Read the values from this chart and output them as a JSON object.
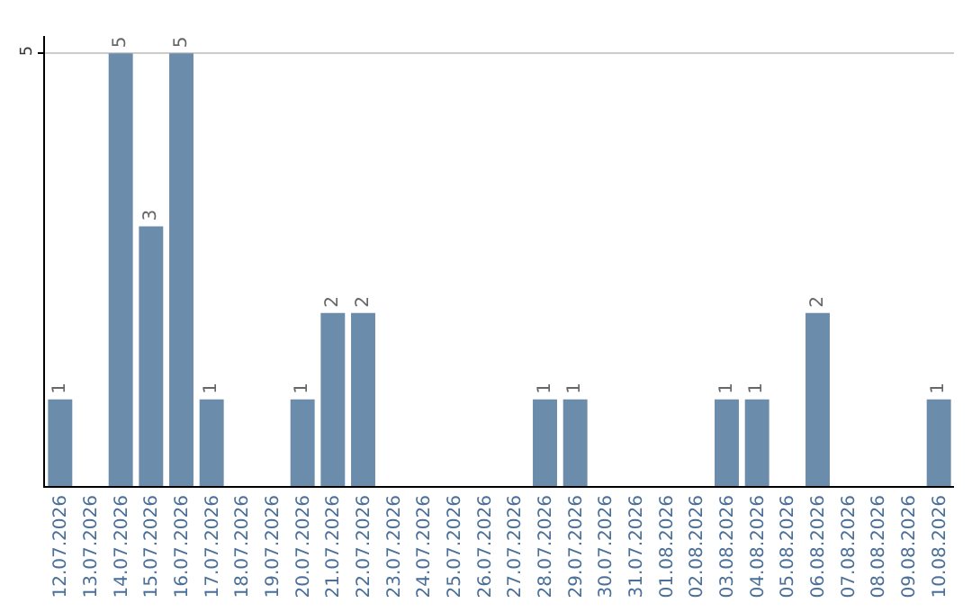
{
  "chart_data": {
    "type": "bar",
    "categories": [
      "12.07.2026",
      "13.07.2026",
      "14.07.2026",
      "15.07.2026",
      "16.07.2026",
      "17.07.2026",
      "18.07.2026",
      "19.07.2026",
      "20.07.2026",
      "21.07.2026",
      "22.07.2026",
      "23.07.2026",
      "24.07.2026",
      "25.07.2026",
      "26.07.2026",
      "27.07.2026",
      "28.07.2026",
      "29.07.2026",
      "30.07.2026",
      "31.07.2026",
      "01.08.2026",
      "02.08.2026",
      "03.08.2026",
      "04.08.2026",
      "05.08.2026",
      "06.08.2026",
      "07.08.2026",
      "08.08.2026",
      "09.08.2026",
      "10.08.2026"
    ],
    "values": [
      1,
      0,
      5,
      3,
      5,
      1,
      0,
      0,
      1,
      2,
      2,
      0,
      0,
      0,
      0,
      0,
      1,
      1,
      0,
      0,
      0,
      0,
      1,
      1,
      0,
      2,
      0,
      0,
      0,
      1
    ],
    "value_labels": [
      "1",
      null,
      "5",
      "3",
      "5",
      "1",
      null,
      null,
      "1",
      "2",
      "2",
      null,
      null,
      null,
      null,
      null,
      "1",
      "1",
      null,
      null,
      null,
      null,
      "1",
      "1",
      null,
      "2",
      null,
      null,
      null,
      "1"
    ],
    "color": "#6b8cab",
    "ylim": [
      0,
      5.2
    ],
    "yticks": [
      5
    ],
    "grid": "y",
    "legend": false
  }
}
